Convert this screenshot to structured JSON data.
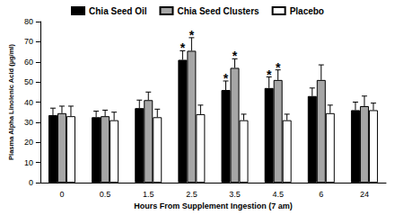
{
  "chart_data": {
    "type": "bar",
    "x_label": "Hours From Supplement Ingestion (7 am)",
    "y_label": "Plasma Alpha Linolenic Acid (µg/ml)",
    "categories": [
      "0",
      "0.5",
      "1.5",
      "2.5",
      "3.5",
      "4.5",
      "6",
      "24"
    ],
    "ylim": [
      0,
      80
    ],
    "yticks": [
      0,
      10,
      20,
      30,
      40,
      50,
      60,
      70,
      80
    ],
    "grid": false,
    "legend": "top",
    "annotation": "*",
    "series": [
      {
        "name": "Chia Seed Oil",
        "color": "#000000",
        "values": [
          33.5,
          32.5,
          37,
          61,
          46,
          47,
          43,
          36
        ],
        "errors": [
          3.5,
          3,
          4,
          4.5,
          4.5,
          5.5,
          4,
          4
        ],
        "annotated": [
          false,
          false,
          false,
          true,
          true,
          true,
          false,
          false
        ]
      },
      {
        "name": "Chia Seed Clusters",
        "color": "#a6a6a6",
        "values": [
          34.5,
          33,
          41,
          65.5,
          57,
          51,
          51,
          38
        ],
        "errors": [
          3.5,
          3,
          4,
          6.5,
          4.5,
          5,
          7.5,
          5
        ],
        "annotated": [
          false,
          false,
          false,
          true,
          true,
          true,
          false,
          false
        ]
      },
      {
        "name": "Placebo",
        "color": "#ffffff",
        "values": [
          33,
          31,
          32.5,
          34,
          31,
          31,
          34.5,
          36
        ],
        "errors": [
          5,
          4,
          4,
          4.5,
          3,
          3,
          4,
          3.5
        ],
        "annotated": [
          false,
          false,
          false,
          false,
          false,
          false,
          false,
          false
        ]
      }
    ]
  }
}
